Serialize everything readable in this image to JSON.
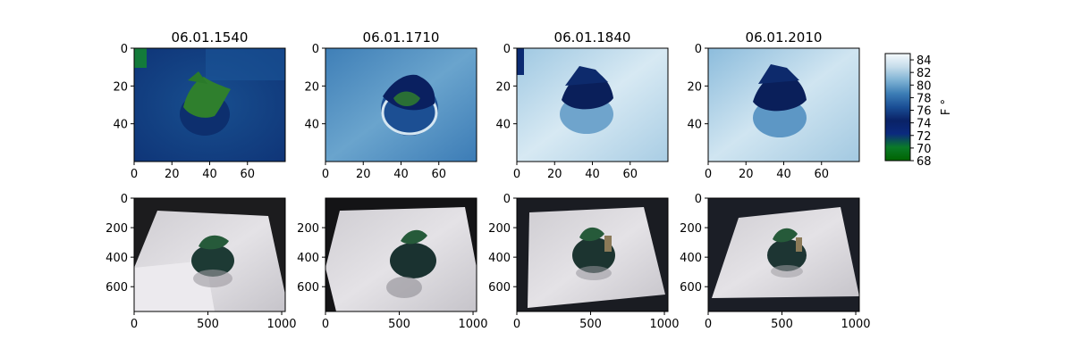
{
  "chart_data": {
    "type": "heatmap",
    "panels": [
      {
        "row": "thermal",
        "title": "06.01.1540",
        "x_ticks": [
          0,
          20,
          40,
          60
        ],
        "y_ticks": [
          0,
          20,
          40
        ],
        "x_range": [
          0,
          80
        ],
        "y_range": [
          60,
          0
        ],
        "description": "thermal image, cooler plant on warmer background"
      },
      {
        "row": "thermal",
        "title": "06.01.1710",
        "x_ticks": [
          0,
          20,
          40,
          60
        ],
        "y_ticks": [
          0,
          20,
          40
        ],
        "x_range": [
          0,
          80
        ],
        "y_range": [
          60,
          0
        ]
      },
      {
        "row": "thermal",
        "title": "06.01.1840",
        "x_ticks": [
          0,
          20,
          40,
          60
        ],
        "y_ticks": [
          0,
          20,
          40
        ],
        "x_range": [
          0,
          80
        ],
        "y_range": [
          60,
          0
        ]
      },
      {
        "row": "thermal",
        "title": "06.01.2010",
        "x_ticks": [
          0,
          20,
          40,
          60
        ],
        "y_ticks": [
          0,
          20,
          40
        ],
        "x_range": [
          0,
          80
        ],
        "y_range": [
          60,
          0
        ]
      },
      {
        "row": "photo",
        "title": "",
        "x_ticks": [
          0,
          500,
          1000
        ],
        "y_ticks": [
          0,
          200,
          400,
          600
        ],
        "x_range": [
          0,
          1024
        ],
        "y_range": [
          768,
          0
        ]
      },
      {
        "row": "photo",
        "title": "",
        "x_ticks": [
          0,
          500,
          1000
        ],
        "y_ticks": [
          200,
          400,
          600
        ],
        "x_range": [
          0,
          1024
        ],
        "y_range": [
          768,
          0
        ]
      },
      {
        "row": "photo",
        "title": "",
        "x_ticks": [
          0,
          500,
          1000
        ],
        "y_ticks": [
          0,
          200,
          400,
          600
        ],
        "x_range": [
          0,
          1024
        ],
        "y_range": [
          768,
          0
        ]
      },
      {
        "row": "photo",
        "title": "",
        "x_ticks": [
          0,
          500,
          1000
        ],
        "y_ticks": [
          0,
          200,
          400,
          600
        ],
        "x_range": [
          0,
          1024
        ],
        "y_range": [
          768,
          0
        ]
      }
    ],
    "colorbar": {
      "label": "F °",
      "range": [
        68,
        85
      ],
      "ticks": [
        68,
        70,
        72,
        74,
        76,
        78,
        80,
        82,
        84
      ],
      "colormap": [
        "#006400",
        "#0a7a28",
        "#0b2a7e",
        "#0a2266",
        "#1a4e95",
        "#3c7db5",
        "#7fb2d4",
        "#c5dcea",
        "#f5fafd"
      ]
    }
  }
}
